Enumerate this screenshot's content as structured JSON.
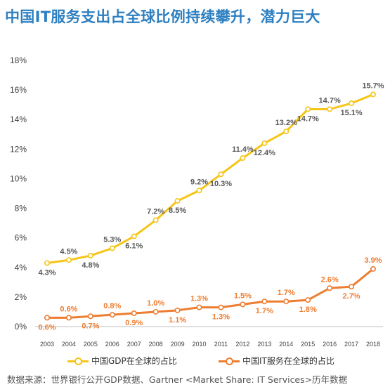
{
  "title": "中国IT服务支出占全球比例持续攀升，潜力巨大",
  "source": "数据来源：世界银行公开GDP数据、Gartner <Market Share: IT Services>历年数据",
  "colors": {
    "gdp": "#f5c518",
    "it": "#ed7d31",
    "title": "#2d7fc1"
  },
  "chart_data": {
    "type": "line",
    "categories": [
      "2003",
      "2004",
      "2005",
      "2006",
      "2007",
      "2008",
      "2009",
      "2010",
      "2011",
      "2012",
      "2013",
      "2014",
      "2015",
      "2016",
      "2017",
      "2018"
    ],
    "ylim": [
      0,
      18
    ],
    "yticks": [
      "0%",
      "2%",
      "4%",
      "6%",
      "8%",
      "10%",
      "12%",
      "14%",
      "16%",
      "18%"
    ],
    "grid": false,
    "legend_position": "bottom",
    "series": [
      {
        "name": "中国GDP在全球的占比",
        "values": [
          4.3,
          4.5,
          4.8,
          5.3,
          6.1,
          7.2,
          8.5,
          9.2,
          10.3,
          11.4,
          12.4,
          13.2,
          14.7,
          14.7,
          15.1,
          15.7
        ],
        "labels": [
          "4.3%",
          "4.5%",
          "4.8%",
          "5.3%",
          "6.1%",
          "7.2%",
          "8.5%",
          "9.2%",
          "10.3%",
          "11.4%",
          "12.4%",
          "13.2%",
          "14.7%",
          "14.7%",
          "15.1%",
          "15.7%"
        ],
        "label_pos": [
          "below",
          "above",
          "below",
          "above",
          "below",
          "above",
          "below",
          "above",
          "below",
          "above",
          "below",
          "above",
          "below",
          "above",
          "below",
          "above"
        ]
      },
      {
        "name": "中国IT服务在全球的占比",
        "values": [
          0.6,
          0.6,
          0.7,
          0.8,
          0.9,
          1.0,
          1.1,
          1.3,
          1.3,
          1.5,
          1.7,
          1.7,
          1.8,
          2.6,
          2.7,
          3.9
        ],
        "labels": [
          "0.6%",
          "0.6%",
          "0.7%",
          "0.8%",
          "0.9%",
          "1.0%",
          "1.1%",
          "1.3%",
          "1.3%",
          "1.5%",
          "1.7%",
          "1.7%",
          "1.8%",
          "2.6%",
          "2.7%",
          "3.9%"
        ],
        "label_pos": [
          "below",
          "above",
          "below",
          "above",
          "below",
          "above",
          "below",
          "above",
          "below",
          "above",
          "below",
          "above",
          "below",
          "above",
          "below",
          "above"
        ]
      }
    ]
  }
}
